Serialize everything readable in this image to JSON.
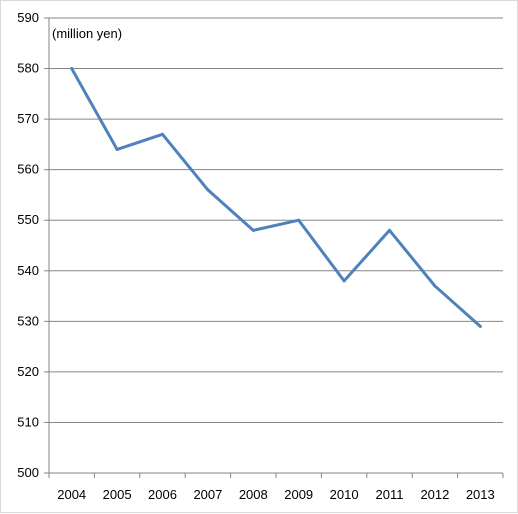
{
  "chart_data": {
    "type": "line",
    "unit_label": "(million yen)",
    "x": [
      "2004",
      "2005",
      "2006",
      "2007",
      "2008",
      "2009",
      "2010",
      "2011",
      "2012",
      "2013"
    ],
    "series": [
      {
        "values": [
          580,
          564,
          567,
          556,
          548,
          550,
          538,
          548,
          537,
          529
        ],
        "color": "#4f81bd"
      }
    ],
    "ylim": [
      500,
      590
    ],
    "yticks": [
      500,
      510,
      520,
      530,
      540,
      550,
      560,
      570,
      580,
      590
    ],
    "grid": true,
    "legend": "none"
  }
}
